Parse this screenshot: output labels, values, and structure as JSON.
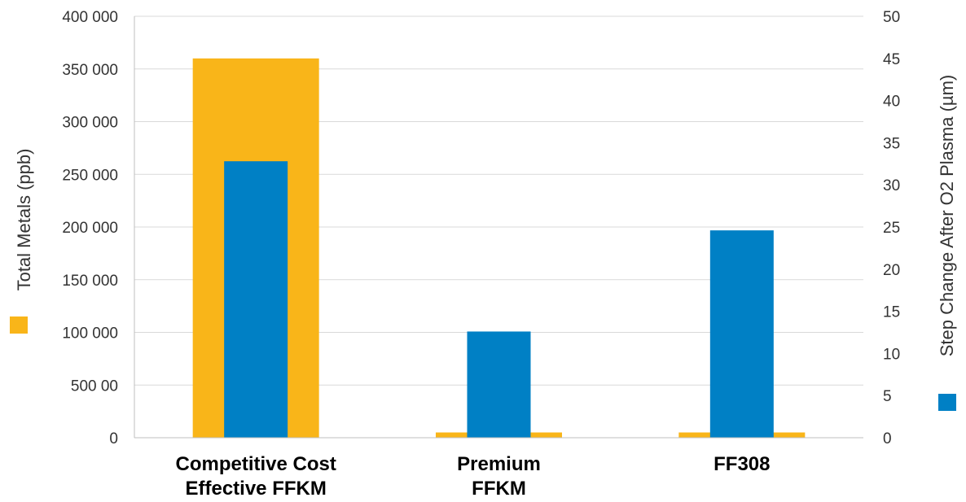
{
  "chart_data": {
    "type": "bar",
    "categories": [
      [
        "Competitive Cost",
        "Effective FFKM"
      ],
      [
        "Premium",
        "FFKM"
      ],
      [
        "FF308"
      ]
    ],
    "series": [
      {
        "name": "Total Metals (ppb)",
        "axis": "left",
        "color": "#F9B519",
        "values": [
          360000,
          5000,
          5000
        ]
      },
      {
        "name": "Step Change After O2 Plasma (µm)",
        "axis": "right",
        "color": "#0080C5",
        "values": [
          32.8,
          12.6,
          24.6
        ]
      }
    ],
    "left_axis": {
      "label": "Total Metals (ppb)",
      "range": [
        0,
        400000
      ],
      "ticks": [
        0,
        50000,
        100000,
        150000,
        200000,
        250000,
        300000,
        350000,
        400000
      ],
      "tick_labels": [
        "0",
        "500 00",
        "100 000",
        "150 000",
        "200 000",
        "250 000",
        "300 000",
        "350 000",
        "400 000"
      ]
    },
    "right_axis": {
      "label": "Step Change After O2 Plasma (µm)",
      "range": [
        0,
        50
      ],
      "ticks": [
        0,
        5,
        10,
        15,
        20,
        25,
        30,
        35,
        40,
        45,
        50
      ],
      "tick_labels": [
        "0",
        "5",
        "10",
        "15",
        "20",
        "25",
        "30",
        "35",
        "40",
        "45",
        "50"
      ]
    },
    "grid": true
  }
}
